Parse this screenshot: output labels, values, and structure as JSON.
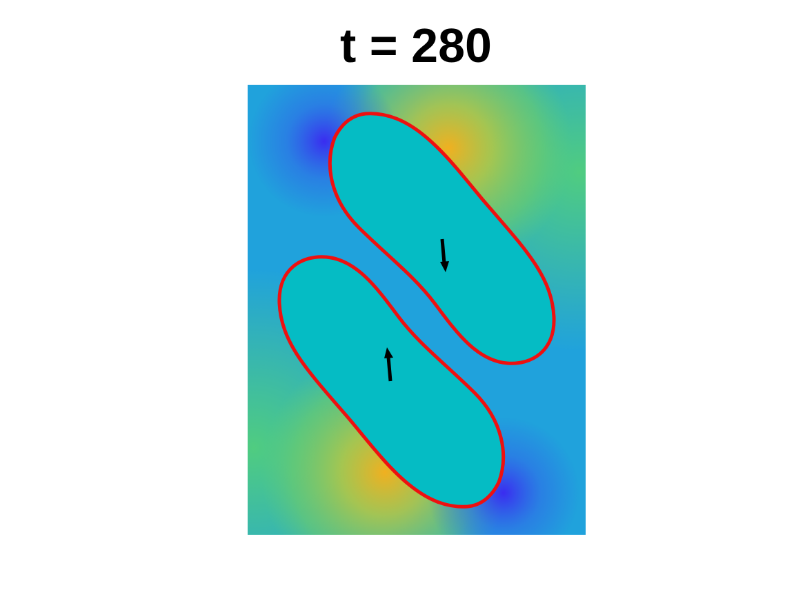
{
  "title": "t = 280"
}
